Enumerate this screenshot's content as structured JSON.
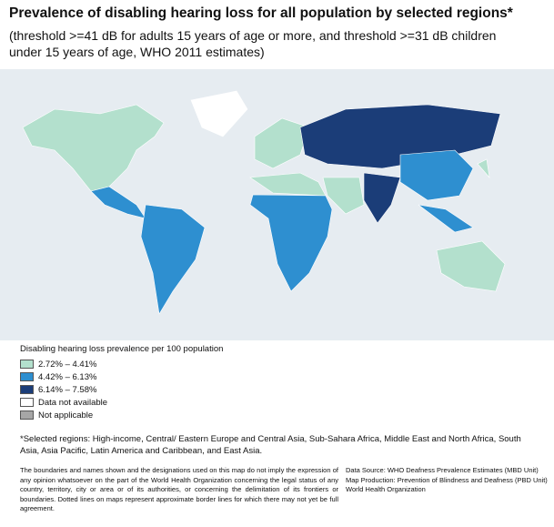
{
  "title": "Prevalence of disabling hearing loss for all population by selected regions*",
  "subtitle": "(threshold >=41 dB for adults 15 years of age or more, and threshold >=31 dB children under 15 years of age, WHO 2011 estimates)",
  "legend": {
    "title": "Disabling hearing loss prevalence per 100 population",
    "items": [
      {
        "label": "2.72% – 4.41%",
        "color": "#b3e0cd"
      },
      {
        "label": "4.42% – 6.13%",
        "color": "#2e8fd0"
      },
      {
        "label": "6.14% – 7.58%",
        "color": "#1b3d78"
      },
      {
        "label": "Data not available",
        "color": "#ffffff"
      },
      {
        "label": "Not applicable",
        "color": "#a6a6a6"
      }
    ]
  },
  "note": "*Selected regions: High-income, Central/ Eastern Europe and Central Asia, Sub-Sahara Africa, Middle East and North Africa, South Asia, Asia Pacific, Latin America and Caribbean, and East Asia.",
  "disclaimer": "The boundaries and names shown and the designations used on this map do not imply the expression of any opinion whatsoever on the part of the World Health Organization concerning the legal status of any country, territory, city or area or of its authorities, or concerning the delimitation of its frontiers or boundaries. Dotted lines on maps represent approximate border lines for which there may not yet be full agreement.",
  "source": [
    "Data Source: WHO Deafness Prevalence Estimates (MBD Unit)",
    "Map Production: Prevention of Blindness and Deafness (PBD Unit)",
    "World Health Organization"
  ]
}
